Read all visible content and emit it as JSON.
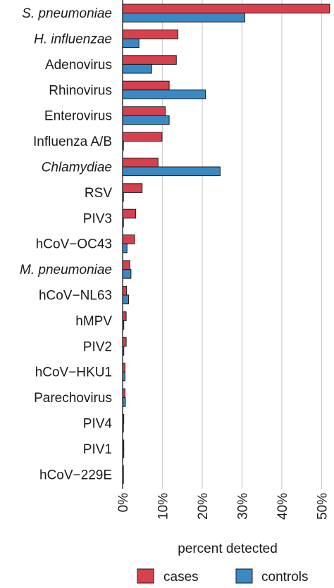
{
  "chart_data": {
    "type": "bar",
    "orientation": "horizontal",
    "categories": [
      "S. pneumoniae",
      "H. influenzae",
      "Adenovirus",
      "Rhinovirus",
      "Enterovirus",
      "Influenza A/B",
      "Chlamydiae",
      "RSV",
      "PIV3",
      "hCoV−OC43",
      "M. pneumoniae",
      "hCoV−NL63",
      "hMPV",
      "PIV2",
      "hCoV−HKU1",
      "Parechovirus",
      "PIV4",
      "PIV1",
      "hCoV−229E"
    ],
    "italic_categories": [
      "S. pneumoniae",
      "H. influenzae",
      "Chlamydiae",
      "M. pneumoniae"
    ],
    "series": [
      {
        "name": "cases",
        "color": "#d7414e",
        "values": [
          52.0,
          13.9,
          13.5,
          11.7,
          10.7,
          9.9,
          8.9,
          4.9,
          3.3,
          3.0,
          1.8,
          1.0,
          0.9,
          0.9,
          0.6,
          0.6,
          0.3,
          0.3,
          0.1
        ]
      },
      {
        "name": "controls",
        "color": "#3a89c3",
        "values": [
          30.7,
          4.1,
          7.3,
          20.8,
          11.7,
          0.2,
          24.5,
          0.2,
          0.2,
          1.1,
          2.1,
          1.5,
          0.3,
          0.3,
          0.6,
          0.7,
          0.1,
          0.3,
          0.1
        ]
      }
    ],
    "xlabel": "percent detected",
    "xlim": [
      0,
      55
    ],
    "xticks": [
      0,
      10,
      20,
      30,
      40,
      50
    ],
    "xtick_labels": [
      "0%",
      "10%",
      "20%",
      "30%",
      "40%",
      "50%"
    ],
    "grid": true,
    "legend_placement": "bottom"
  }
}
